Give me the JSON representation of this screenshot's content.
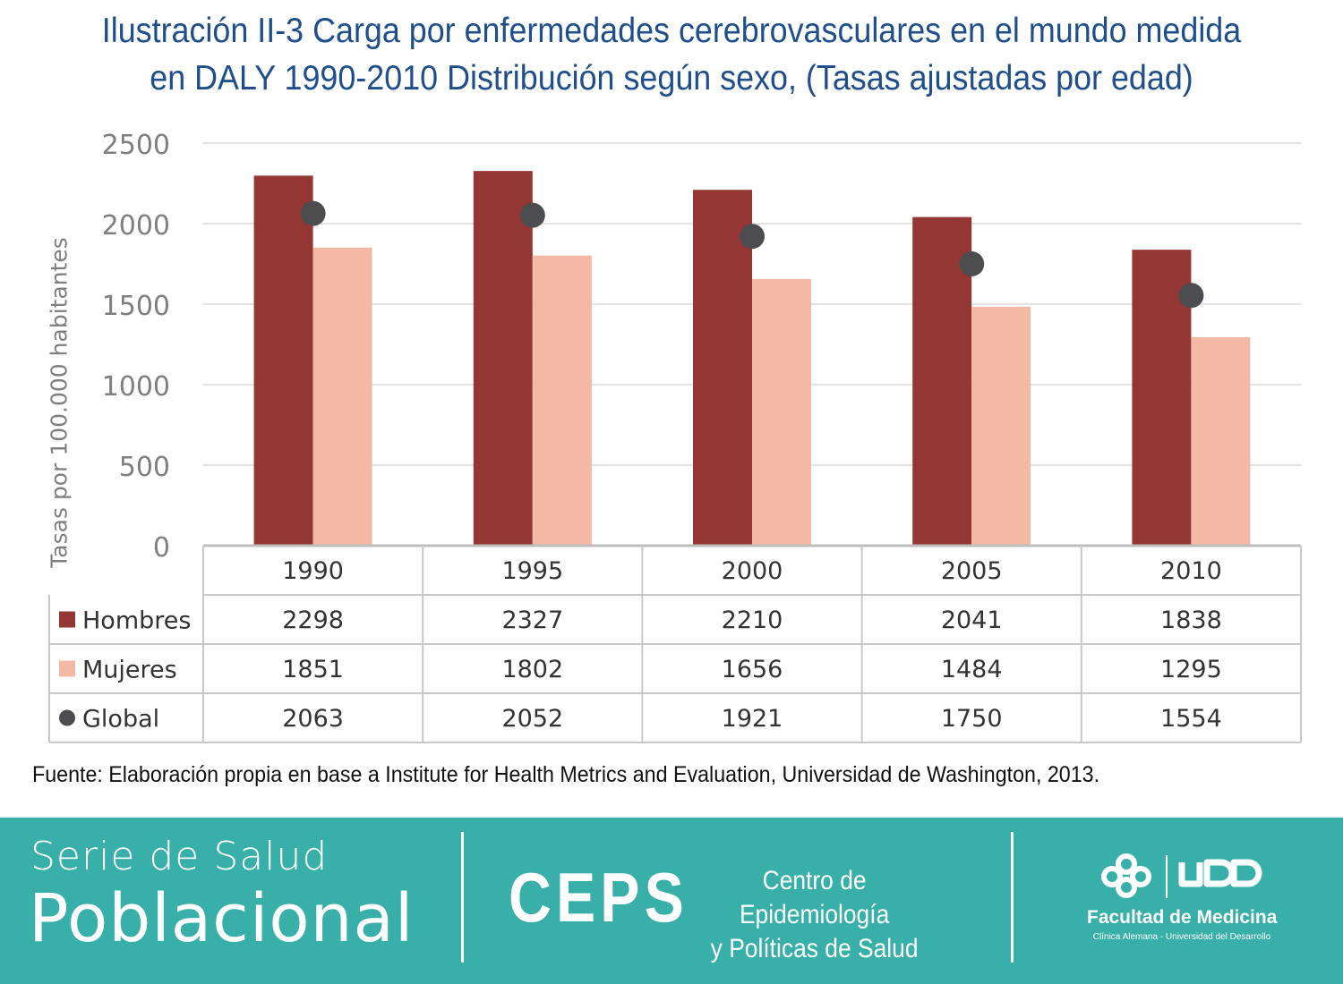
{
  "title_line1": "Ilustración II-3 Carga por enfermedades cerebrovasculares en el mundo medida",
  "title_line2": "en DALY 1990-2010 Distribución según sexo, (Tasas ajustadas por edad)",
  "source": "Fuente: Elaboración propia en base a Institute for Health Metrics and Evaluation, Universidad de Washington, 2013.",
  "colors": {
    "hombres": "#943634",
    "mujeres": "#f4b9a5",
    "global": "#4d4d4f",
    "title": "#1f4e8c",
    "footer": "#38afa8"
  },
  "chart_data": {
    "type": "bar",
    "title": "Ilustración II-3 Carga por enfermedades cerebrovasculares en el mundo medida en DALY 1990-2010 Distribución según sexo, (Tasas ajustadas por edad)",
    "ylabel": "Tasas por 100.000 habitantes",
    "xlabel": "",
    "ylim": [
      0,
      2500
    ],
    "yticks": [
      0,
      500,
      1000,
      1500,
      2000,
      2500
    ],
    "grid": true,
    "legend": "data-table",
    "categories": [
      "1990",
      "1995",
      "2000",
      "2005",
      "2010"
    ],
    "series": [
      {
        "name": "Hombres",
        "kind": "bar",
        "values": [
          2298,
          2327,
          2210,
          2041,
          1838
        ]
      },
      {
        "name": "Mujeres",
        "kind": "bar",
        "values": [
          1851,
          1802,
          1656,
          1484,
          1295
        ]
      },
      {
        "name": "Global",
        "kind": "marker",
        "values": [
          2063,
          2052,
          1921,
          1750,
          1554
        ]
      }
    ]
  },
  "footer": {
    "serie_line1": "Serie de Salud",
    "serie_line2": "Poblacional",
    "ceps": "CEPS",
    "centro_line1": "Centro de Epidemiología",
    "centro_line2": "y Políticas de Salud",
    "facultad": "Facultad de Medicina",
    "clinica": "Clínica Alemana - Universidad del Desarrollo",
    "logo_text": "UDD"
  }
}
